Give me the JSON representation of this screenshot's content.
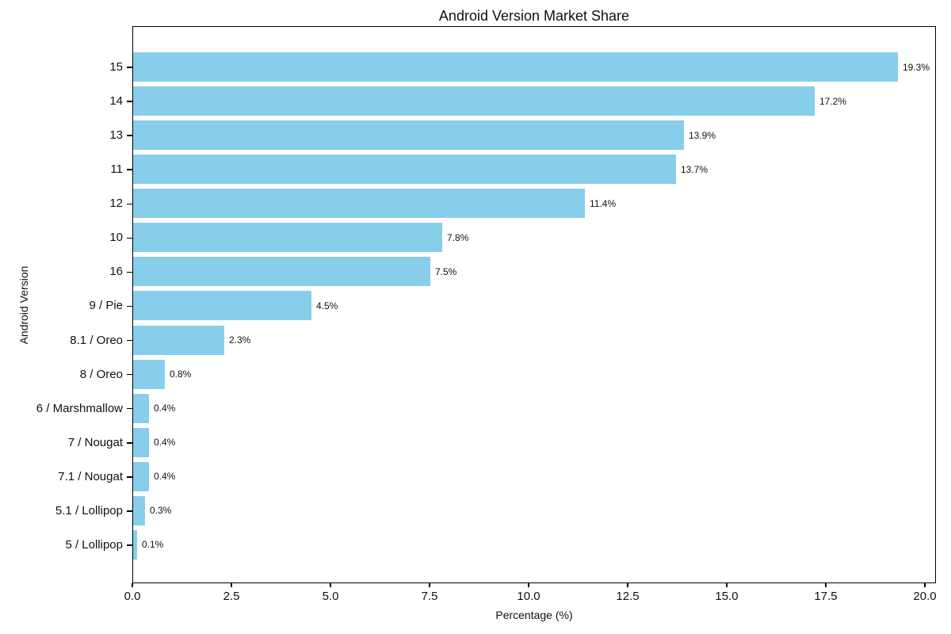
{
  "title": "Android Version Market Share",
  "chart_data": {
    "type": "bar",
    "orientation": "horizontal",
    "title": "Android Version Market Share",
    "xlabel": "Percentage (%)",
    "ylabel": "Android Version",
    "categories": [
      "15",
      "14",
      "13",
      "11",
      "12",
      "10",
      "16",
      "9 / Pie",
      "8.1 / Oreo",
      "8 / Oreo",
      "6 / Marshmallow",
      "7 / Nougat",
      "7.1 / Nougat",
      "5.1 / Lollipop",
      "5 / Lollipop"
    ],
    "values": [
      19.3,
      17.2,
      13.9,
      13.7,
      11.4,
      7.8,
      7.5,
      4.5,
      2.3,
      0.8,
      0.4,
      0.4,
      0.4,
      0.3,
      0.1
    ],
    "value_labels": [
      "19.3%",
      "17.2%",
      "13.9%",
      "13.7%",
      "11.4%",
      "7.8%",
      "7.5%",
      "4.5%",
      "2.3%",
      "0.8%",
      "0.4%",
      "0.4%",
      "0.4%",
      "0.3%",
      "0.1%"
    ],
    "x_ticks": [
      0.0,
      2.5,
      5.0,
      7.5,
      10.0,
      12.5,
      15.0,
      17.5,
      20.0
    ],
    "x_tick_labels": [
      "0.0",
      "2.5",
      "5.0",
      "7.5",
      "10.0",
      "12.5",
      "15.0",
      "17.5",
      "20.0"
    ],
    "xlim": [
      0,
      20.28
    ],
    "grid": false,
    "legend": false,
    "bar_color": "#87CEEB",
    "text_color": "#111111",
    "spine_color": "#000000"
  }
}
